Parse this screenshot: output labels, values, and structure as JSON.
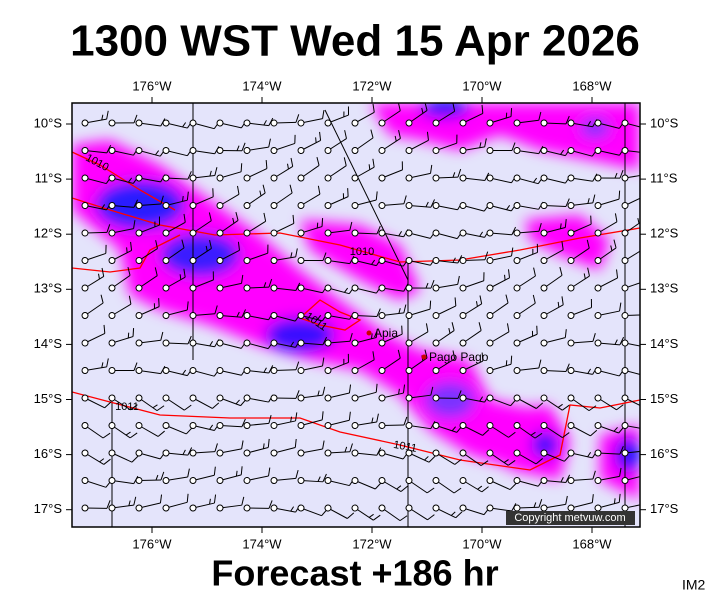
{
  "title": "1300 WST Wed 15 Apr 2026",
  "footer": "Forecast +186 hr",
  "image_id": "IM2",
  "copyright": "Copyright metvuw.com",
  "longitude_labels": [
    "176°W",
    "174°W",
    "172°W",
    "170°W",
    "168°W"
  ],
  "latitude_labels": [
    "10°S",
    "11°S",
    "12°S",
    "13°S",
    "14°S",
    "15°S",
    "16°S",
    "17°S"
  ],
  "isobar_labels": [
    "1010",
    "1010",
    "1011",
    "1011",
    "1011"
  ],
  "places": [
    "Apia",
    "Pago Pago"
  ]
}
